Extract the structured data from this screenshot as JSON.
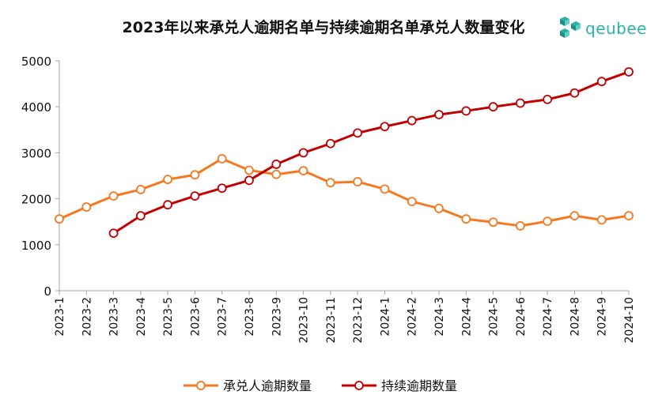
{
  "title": "2023年以来承兑人逾期名单与持续逾期名单承兑人数量变化",
  "logo": {
    "text": "qeubee",
    "icon": "cube-cluster-icon",
    "color": "#2ab3a4"
  },
  "chart_data": {
    "type": "line",
    "title": "2023年以来承兑人逾期名单与持续逾期名单承兑人数量变化",
    "xlabel": "",
    "ylabel": "",
    "ylim": [
      0,
      5000
    ],
    "yticks": [
      0,
      1000,
      2000,
      3000,
      4000,
      5000
    ],
    "grid": false,
    "legend": "bottom-center",
    "categories": [
      "2023-1",
      "2023-2",
      "2023-3",
      "2023-4",
      "2023-5",
      "2023-6",
      "2023-7",
      "2023-8",
      "2023-9",
      "2023-10",
      "2023-11",
      "2023-12",
      "2024-1",
      "2024-2",
      "2024-3",
      "2024-4",
      "2024-5",
      "2024-6",
      "2024-7",
      "2024-8",
      "2024-9",
      "2024-10"
    ],
    "series": [
      {
        "name": "承兑人逾期数量",
        "color": "#f47920",
        "values": [
          1560,
          1820,
          2060,
          2200,
          2420,
          2520,
          2870,
          2620,
          2530,
          2610,
          2350,
          2370,
          2210,
          1940,
          1790,
          1560,
          1490,
          1410,
          1510,
          1630,
          1540,
          1630
        ]
      },
      {
        "name": "持续逾期数量",
        "color": "#c00000",
        "values": [
          null,
          null,
          1250,
          1630,
          1870,
          2060,
          2230,
          2400,
          2750,
          3000,
          3200,
          3430,
          3570,
          3700,
          3830,
          3910,
          4000,
          4080,
          4160,
          4300,
          4550,
          4760
        ]
      }
    ]
  }
}
